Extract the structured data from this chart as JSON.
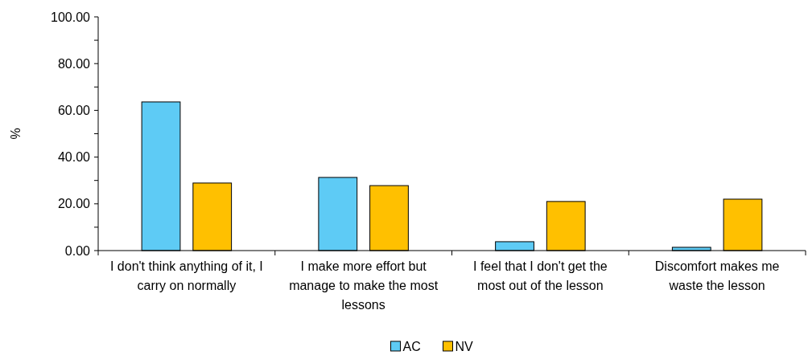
{
  "chart_data": {
    "type": "bar",
    "ylabel": "%",
    "categories": [
      "I don't think anything of it, I carry on normally",
      "I make more effort but manage to make the most lessons",
      "I feel that I don't get the most out of the lesson",
      "Discomfort makes me waste the lesson"
    ],
    "series": [
      {
        "name": "AC",
        "color": "#5ecbf5",
        "values": [
          63.6,
          31.3,
          3.8,
          1.4
        ]
      },
      {
        "name": "NV",
        "color": "#ffc000",
        "values": [
          28.9,
          27.8,
          21.0,
          22.0
        ]
      }
    ],
    "ylim": [
      0,
      100
    ],
    "yticks": [
      {
        "value": 0,
        "label": "0.00"
      },
      {
        "value": 10,
        "label": null
      },
      {
        "value": 20,
        "label": "20.00"
      },
      {
        "value": 30,
        "label": null
      },
      {
        "value": 40,
        "label": "40.00"
      },
      {
        "value": 50,
        "label": null
      },
      {
        "value": 60,
        "label": "60.00"
      },
      {
        "value": 70,
        "label": null
      },
      {
        "value": 80,
        "label": "80.00"
      },
      {
        "value": 90,
        "label": null
      },
      {
        "value": 100,
        "label": "100.00"
      }
    ],
    "grid": false,
    "legend": "bottom"
  }
}
